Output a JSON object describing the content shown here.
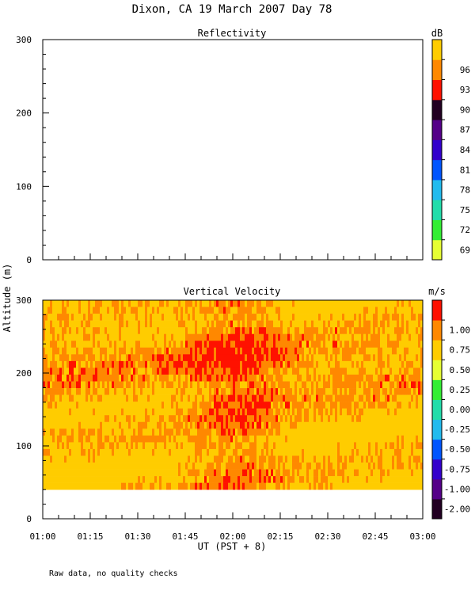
{
  "page": {
    "title": "Dixon, CA 19 March 2007  Day  78",
    "footer_note": "Raw data, no quality checks",
    "shared_ylabel": "Altitude (m)",
    "xlabel": "UT  (PST + 8)"
  },
  "chart_data": [
    {
      "type": "heatmap",
      "title": "Reflectivity",
      "xlabel": "UT  (PST + 8)",
      "ylabel": "Altitude (m)",
      "x_ticks": [
        "01:00",
        "01:15",
        "01:30",
        "01:45",
        "02:00",
        "02:15",
        "02:30",
        "02:45",
        "03:00"
      ],
      "x_range": [
        "01:00",
        "03:00"
      ],
      "ylim": [
        0,
        300
      ],
      "y_ticks": [
        0,
        100,
        200,
        300
      ],
      "data": [],
      "colorbar": {
        "unit_label": "dB",
        "ticks": [
          69,
          72,
          75,
          78,
          81,
          84,
          87,
          90,
          93,
          96
        ],
        "colors": [
          "#e6ff33",
          "#33ee33",
          "#22ddaa",
          "#22bbee",
          "#0055ff",
          "#3300cc",
          "#550088",
          "#220022",
          "#ff1100",
          "#ff8800",
          "#ffcc00"
        ]
      }
    },
    {
      "type": "heatmap",
      "title": "Vertical Velocity",
      "xlabel": "UT  (PST + 8)",
      "ylabel": "Altitude (m)",
      "x_ticks": [
        "01:00",
        "01:15",
        "01:30",
        "01:45",
        "02:00",
        "02:15",
        "02:30",
        "02:45",
        "03:00"
      ],
      "x_range": [
        "01:00",
        "03:00"
      ],
      "ylim": [
        0,
        300
      ],
      "y_ticks": [
        0,
        100,
        200,
        300
      ],
      "data_altitude_range": [
        40,
        300
      ],
      "dominant_values": "0.50 to 1.00 m/s, with values near 1.00 m/s concentrated around 01:45–02:10",
      "colorbar": {
        "unit_label": "m/s",
        "tick_labels": [
          "-2.00",
          "-1.00",
          "-0.75",
          "-0.50",
          "-0.25",
          "0.00",
          "0.25",
          "0.50",
          "0.75",
          "1.00"
        ],
        "colors": [
          "#220022",
          "#550088",
          "#3300cc",
          "#0055ff",
          "#22bbee",
          "#22ddaa",
          "#33ee33",
          "#e6ff33",
          "#ffcc00",
          "#ff8800",
          "#ff1100"
        ]
      }
    }
  ]
}
